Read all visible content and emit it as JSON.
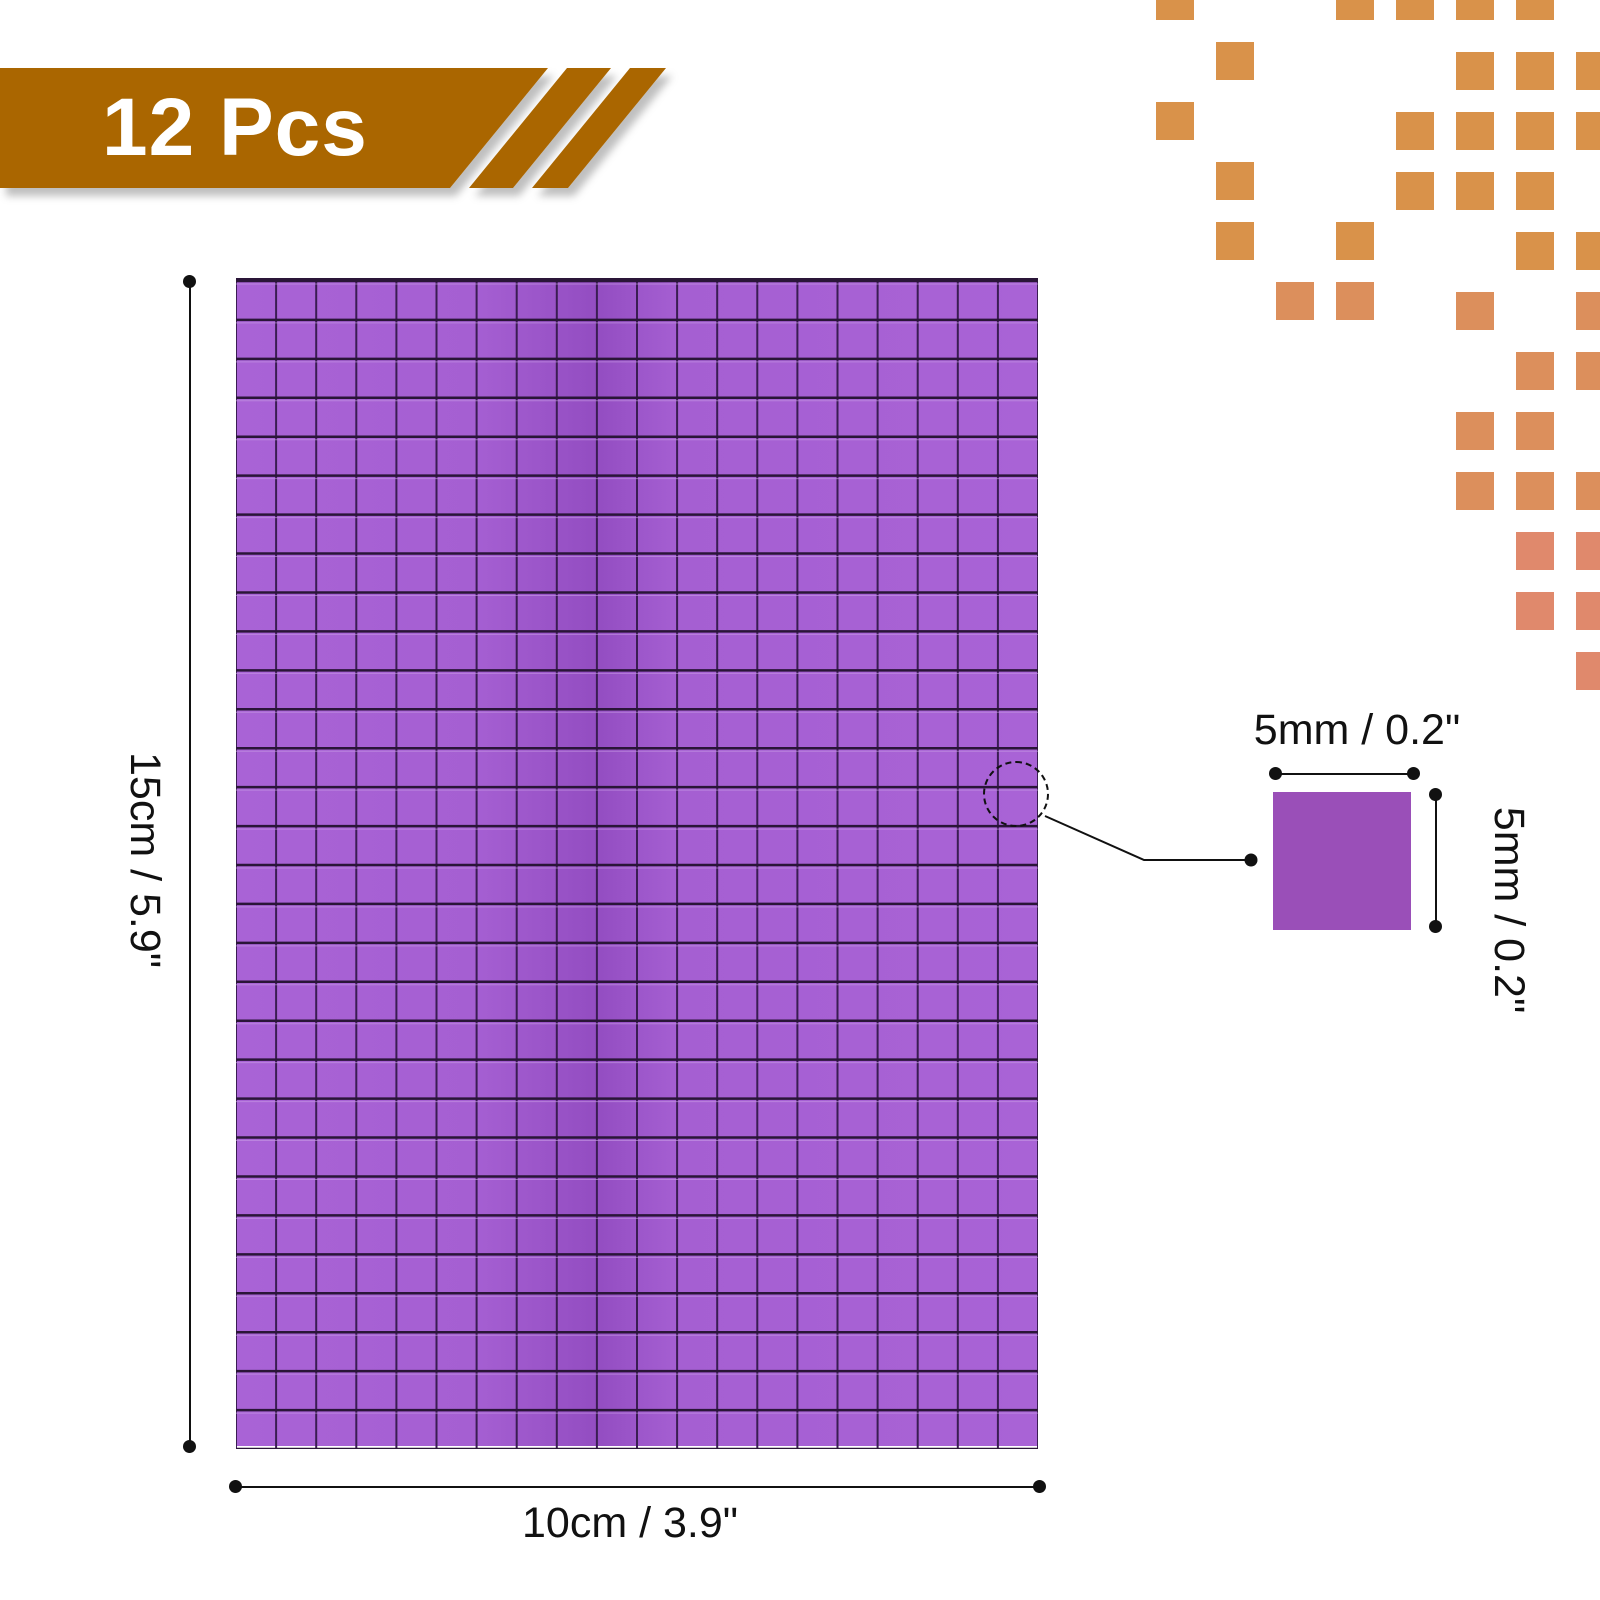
{
  "banner": {
    "text": "12 Pcs",
    "color": "#aa6603"
  },
  "decoration": {
    "squares_colors": [
      "#d9924a",
      "#dc8f5c",
      "#e0896c"
    ]
  },
  "product": {
    "name_icon": "purple-mosaic-sheet",
    "tile_color": "#a963d6",
    "sample_tile_color": "#9a4fb8"
  },
  "dimensions": {
    "sheet_height": "15cm / 5.9\"",
    "sheet_width": "10cm / 3.9\"",
    "tile_width": "5mm / 0.2\"",
    "tile_height": "5mm / 0.2\""
  }
}
